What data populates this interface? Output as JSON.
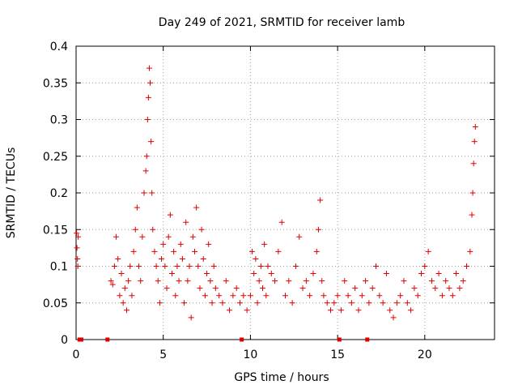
{
  "chart_data": {
    "type": "scatter",
    "title": "Day 249 of 2021, SRMTID for receiver lamb",
    "xlabel": "GPS time / hours",
    "ylabel": "SRMTID / TECUs",
    "xlim": [
      0,
      24
    ],
    "ylim": [
      0,
      0.4
    ],
    "xticks": [
      0,
      5,
      10,
      15,
      20
    ],
    "xtick_labels": [
      "0",
      "5",
      "10",
      "15",
      "20"
    ],
    "yticks": [
      0,
      0.05,
      0.1,
      0.15,
      0.2,
      0.25,
      0.3,
      0.35,
      0.4
    ],
    "ytick_labels": [
      "0",
      "0.05",
      "0.1",
      "0.15",
      "0.2",
      "0.25",
      "0.3",
      "0.35",
      "0.4"
    ],
    "grid": true,
    "marker": "+",
    "marker_color": "#e00000",
    "series": [
      {
        "name": "SRMTID",
        "x": [
          0.03,
          0.05,
          0.08,
          0.1,
          0.12,
          2.0,
          2.1,
          2.2,
          2.3,
          2.4,
          2.5,
          2.6,
          2.7,
          2.8,
          2.9,
          3.0,
          3.1,
          3.2,
          3.3,
          3.4,
          3.5,
          3.6,
          3.7,
          3.8,
          3.9,
          4.0,
          4.05,
          4.1,
          4.15,
          4.2,
          4.25,
          4.3,
          4.35,
          4.4,
          4.5,
          4.6,
          4.7,
          4.8,
          4.9,
          5.0,
          5.1,
          5.2,
          5.3,
          5.4,
          5.5,
          5.6,
          5.7,
          5.8,
          5.9,
          6.0,
          6.1,
          6.2,
          6.3,
          6.4,
          6.5,
          6.6,
          6.7,
          6.8,
          6.9,
          7.0,
          7.1,
          7.2,
          7.3,
          7.4,
          7.5,
          7.6,
          7.7,
          7.8,
          7.9,
          8.0,
          8.2,
          8.4,
          8.6,
          8.8,
          9.0,
          9.2,
          9.4,
          9.6,
          9.8,
          10.0,
          10.1,
          10.2,
          10.3,
          10.4,
          10.5,
          10.6,
          10.7,
          10.8,
          10.9,
          11.0,
          11.2,
          11.4,
          11.6,
          11.8,
          12.0,
          12.2,
          12.4,
          12.6,
          12.8,
          13.0,
          13.2,
          13.4,
          13.6,
          13.8,
          13.9,
          14.0,
          14.1,
          14.2,
          14.4,
          14.6,
          14.8,
          15.0,
          15.2,
          15.4,
          15.6,
          15.8,
          16.0,
          16.2,
          16.4,
          16.6,
          16.8,
          17.0,
          17.2,
          17.4,
          17.6,
          17.8,
          18.0,
          18.2,
          18.4,
          18.6,
          18.8,
          19.0,
          19.2,
          19.4,
          19.6,
          19.8,
          20.0,
          20.2,
          20.4,
          20.6,
          20.8,
          21.0,
          21.2,
          21.4,
          21.6,
          21.8,
          22.0,
          22.2,
          22.4,
          22.6,
          22.7,
          22.75,
          22.8,
          22.85,
          22.9
        ],
        "y": [
          0.145,
          0.125,
          0.11,
          0.1,
          0.14,
          0.08,
          0.075,
          0.1,
          0.14,
          0.11,
          0.06,
          0.09,
          0.05,
          0.07,
          0.04,
          0.08,
          0.1,
          0.06,
          0.12,
          0.15,
          0.18,
          0.1,
          0.08,
          0.14,
          0.2,
          0.23,
          0.25,
          0.3,
          0.33,
          0.37,
          0.35,
          0.27,
          0.2,
          0.15,
          0.12,
          0.1,
          0.08,
          0.05,
          0.11,
          0.13,
          0.1,
          0.07,
          0.14,
          0.17,
          0.09,
          0.12,
          0.06,
          0.1,
          0.08,
          0.13,
          0.11,
          0.05,
          0.16,
          0.08,
          0.1,
          0.03,
          0.14,
          0.12,
          0.18,
          0.1,
          0.07,
          0.15,
          0.11,
          0.06,
          0.09,
          0.13,
          0.08,
          0.05,
          0.1,
          0.07,
          0.06,
          0.05,
          0.08,
          0.04,
          0.06,
          0.07,
          0.05,
          0.06,
          0.04,
          0.06,
          0.12,
          0.09,
          0.11,
          0.05,
          0.08,
          0.1,
          0.07,
          0.13,
          0.06,
          0.1,
          0.09,
          0.08,
          0.12,
          0.16,
          0.06,
          0.08,
          0.05,
          0.1,
          0.14,
          0.07,
          0.08,
          0.06,
          0.09,
          0.12,
          0.15,
          0.19,
          0.08,
          0.06,
          0.05,
          0.04,
          0.05,
          0.06,
          0.04,
          0.08,
          0.06,
          0.05,
          0.07,
          0.04,
          0.06,
          0.08,
          0.05,
          0.07,
          0.1,
          0.06,
          0.05,
          0.09,
          0.04,
          0.03,
          0.05,
          0.06,
          0.08,
          0.05,
          0.04,
          0.07,
          0.06,
          0.09,
          0.1,
          0.12,
          0.08,
          0.07,
          0.09,
          0.06,
          0.08,
          0.07,
          0.06,
          0.09,
          0.07,
          0.08,
          0.1,
          0.12,
          0.17,
          0.2,
          0.24,
          0.27,
          0.29
        ]
      }
    ],
    "zero_markers_x": [
      0.2,
      0.25,
      0.3,
      1.8,
      9.5,
      15.1,
      16.7
    ]
  }
}
